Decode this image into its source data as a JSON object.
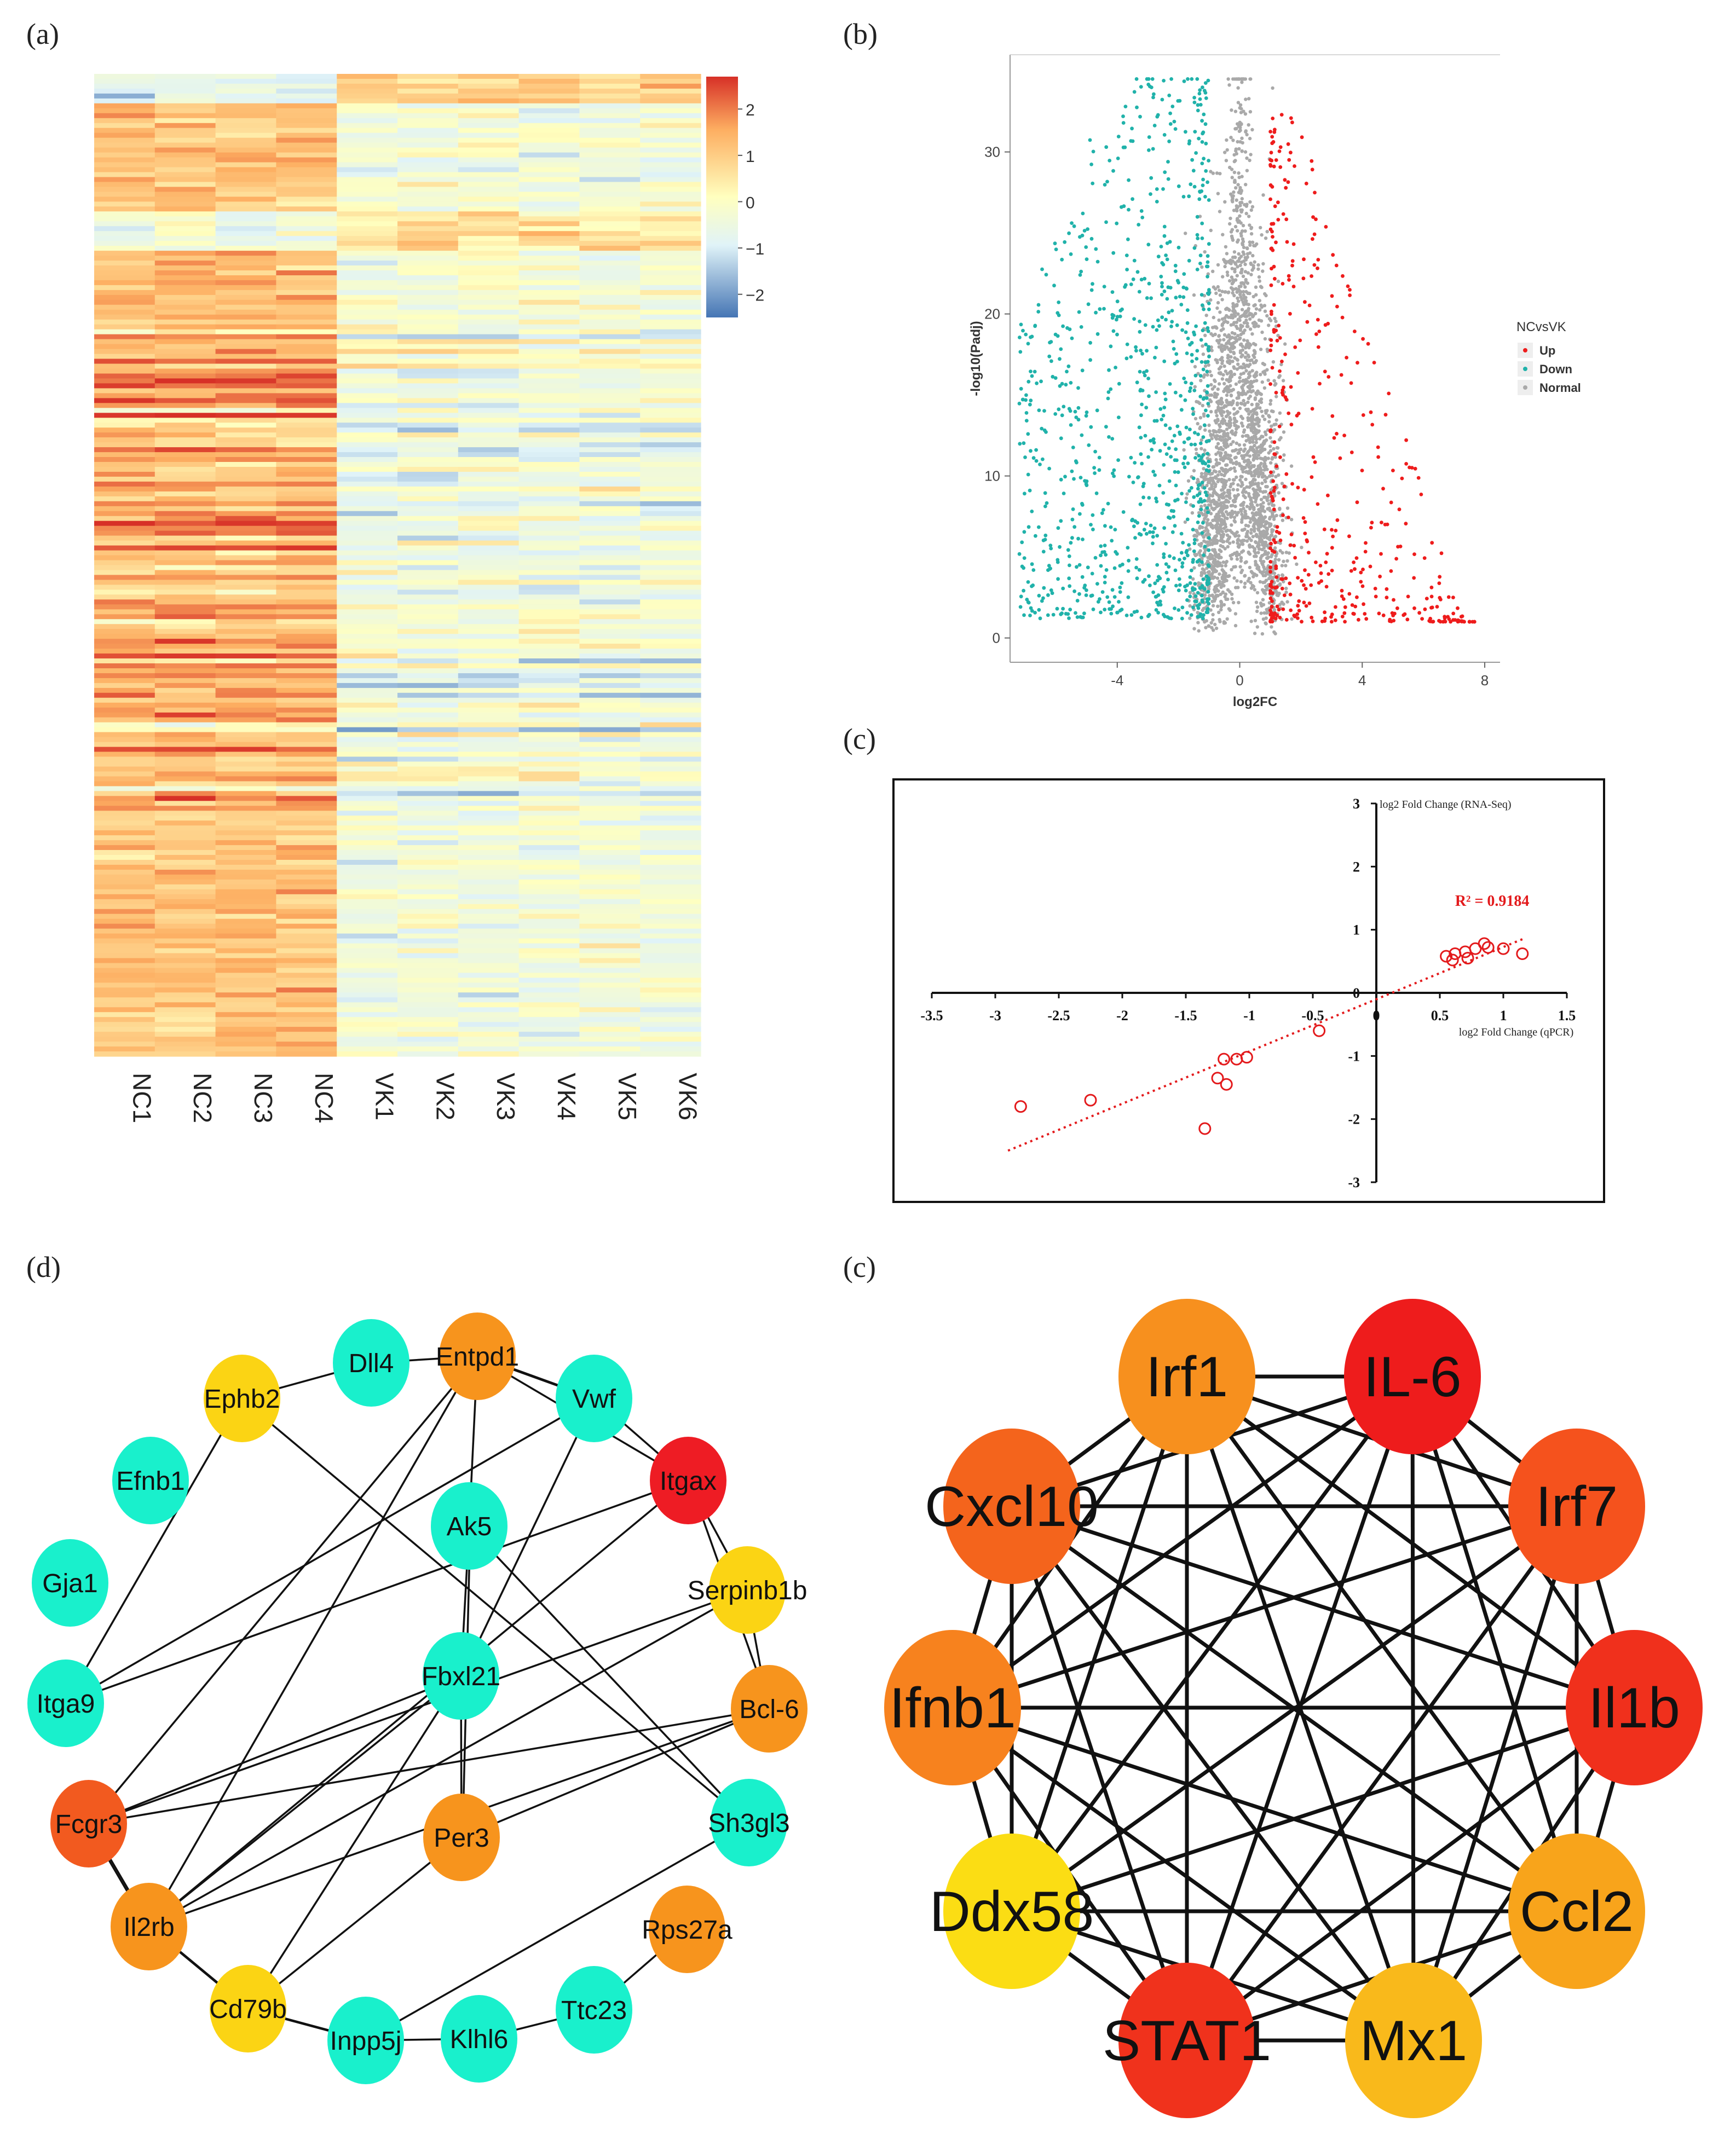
{
  "panel_labels": {
    "a": "(a)",
    "b": "(b)",
    "c": "(c)",
    "d": "(d)",
    "e": "(c)"
  },
  "chart_data": [
    {
      "type": "heatmap",
      "columns": [
        "NC1",
        "NC2",
        "NC3",
        "NC4",
        "VK1",
        "VK2",
        "VK3",
        "VK4",
        "VK5",
        "VK6"
      ],
      "color_scale": {
        "min": -2.5,
        "max": 2.7,
        "colors": [
          "#4575b4",
          "#e0f3f8",
          "#ffffbf",
          "#fdae61",
          "#d73027"
        ]
      },
      "colorbar_ticks": [
        2,
        1,
        0,
        -1,
        -2
      ],
      "rows": 200
    },
    {
      "type": "scatter",
      "xlabel": "log2FC",
      "ylabel": "-log10(Padj)",
      "xlim": [
        -7.5,
        8.5
      ],
      "ylim": [
        -1.5,
        36
      ],
      "xticks": [
        -4,
        0,
        4,
        8
      ],
      "yticks": [
        0,
        10,
        20,
        30
      ],
      "legend": {
        "title": "NCvsVK",
        "entries": [
          "Up",
          "Down",
          "Normal"
        ],
        "placement": "right"
      },
      "colors": {
        "Up": "#ee1c1c",
        "Down": "#20b2aa",
        "Normal": "#a9a9a9"
      }
    },
    {
      "type": "scatter",
      "xlabel": "log2 Fold Change (qPCR)",
      "ylabel": "log2 Fold Change (RNA-Seq)",
      "xlim": [
        -3.5,
        1.5
      ],
      "ylim": [
        -3,
        3
      ],
      "xticks": [
        "-3.5",
        "-3",
        "-2.5",
        "-2",
        "-1.5",
        "-1",
        "-0.5",
        "0",
        "0.5",
        "1",
        "1.5"
      ],
      "yticks": [
        "3",
        "2",
        "1",
        "0",
        "-1",
        "-2",
        "-3"
      ],
      "annotation": "R² = 0.9184",
      "trendline": {
        "from": [
          -2.9,
          -2.5
        ],
        "to": [
          1.15,
          0.85
        ]
      },
      "points": [
        {
          "x": -2.8,
          "y": -1.8
        },
        {
          "x": -2.25,
          "y": -1.7
        },
        {
          "x": -1.35,
          "y": -2.15
        },
        {
          "x": -1.25,
          "y": -1.35
        },
        {
          "x": -1.18,
          "y": -1.45
        },
        {
          "x": -1.2,
          "y": -1.05
        },
        {
          "x": -1.1,
          "y": -1.05
        },
        {
          "x": -1.02,
          "y": -1.02
        },
        {
          "x": -0.45,
          "y": -0.6
        },
        {
          "x": 0.55,
          "y": 0.58
        },
        {
          "x": 0.6,
          "y": 0.52
        },
        {
          "x": 0.62,
          "y": 0.62
        },
        {
          "x": 0.7,
          "y": 0.65
        },
        {
          "x": 0.72,
          "y": 0.55
        },
        {
          "x": 0.78,
          "y": 0.7
        },
        {
          "x": 0.85,
          "y": 0.78
        },
        {
          "x": 0.88,
          "y": 0.72
        },
        {
          "x": 1.0,
          "y": 0.7
        },
        {
          "x": 1.15,
          "y": 0.62
        }
      ]
    },
    {
      "type": "network",
      "nodes": [
        {
          "id": "Dll4",
          "color": "#19f0cc"
        },
        {
          "id": "Entpd1",
          "color": "#f7941d"
        },
        {
          "id": "Ephb2",
          "color": "#fbd414"
        },
        {
          "id": "Vwf",
          "color": "#19f0cc"
        },
        {
          "id": "Efnb1",
          "color": "#19f0cc"
        },
        {
          "id": "Itgax",
          "color": "#ee1c24"
        },
        {
          "id": "Ak5",
          "color": "#19f0cc"
        },
        {
          "id": "Gja1",
          "color": "#19f0cc"
        },
        {
          "id": "Serpinb1b",
          "color": "#fbd414"
        },
        {
          "id": "Fbxl21",
          "color": "#19f0cc"
        },
        {
          "id": "Itga9",
          "color": "#19f0cc"
        },
        {
          "id": "Bcl-6",
          "color": "#f7941d"
        },
        {
          "id": "Fcgr3",
          "color": "#f25a1f"
        },
        {
          "id": "Sh3gl3",
          "color": "#19f0cc"
        },
        {
          "id": "Per3",
          "color": "#f7941d"
        },
        {
          "id": "Il2rb",
          "color": "#f7941d"
        },
        {
          "id": "Rps27a",
          "color": "#f7941d"
        },
        {
          "id": "Cd79b",
          "color": "#fbd414"
        },
        {
          "id": "Ttc23",
          "color": "#19f0cc"
        },
        {
          "id": "Inpp5j",
          "color": "#19f0cc"
        },
        {
          "id": "Klhl6",
          "color": "#19f0cc"
        }
      ]
    },
    {
      "type": "network",
      "nodes": [
        {
          "id": "Irf1",
          "color": "#f7901e"
        },
        {
          "id": "IL-6",
          "color": "#ee1c1c"
        },
        {
          "id": "Cxcl10",
          "color": "#f4641c"
        },
        {
          "id": "Irf7",
          "color": "#f5521d"
        },
        {
          "id": "Ifnb1",
          "color": "#f7821e"
        },
        {
          "id": "Il1b",
          "color": "#f0301c"
        },
        {
          "id": "Ddx58",
          "color": "#fbdd14"
        },
        {
          "id": "Ccl2",
          "color": "#f8a41b"
        },
        {
          "id": "STAT1",
          "color": "#f0321c"
        },
        {
          "id": "Mx1",
          "color": "#f9b91b"
        }
      ]
    }
  ]
}
